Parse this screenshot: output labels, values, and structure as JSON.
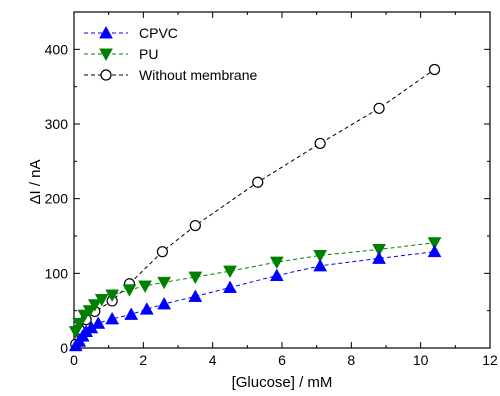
{
  "chart_data": {
    "type": "scatter",
    "xlabel": "[Glucose] / mM",
    "ylabel": "ΔI / nA",
    "xlim": [
      0,
      12
    ],
    "ylim": [
      0,
      450
    ],
    "xticks": [
      0,
      2,
      4,
      6,
      8,
      10,
      12
    ],
    "yticks": [
      0,
      100,
      200,
      300,
      400
    ],
    "grid": false,
    "legend_position": "top-left",
    "series": [
      {
        "name": "CPVC",
        "color": "#0000ff",
        "marker": "triangle-up",
        "line": "dashed",
        "x": [
          0.05,
          0.15,
          0.25,
          0.35,
          0.5,
          0.7,
          1.1,
          1.65,
          2.1,
          2.6,
          3.5,
          4.5,
          5.85,
          7.1,
          8.8,
          10.4
        ],
        "y": [
          3,
          9,
          16,
          22,
          27,
          33,
          39,
          45,
          52,
          59,
          69,
          81,
          97,
          110,
          120,
          129
        ]
      },
      {
        "name": "PU",
        "color": "#008000",
        "marker": "triangle-down",
        "line": "dashed",
        "x": [
          0.05,
          0.15,
          0.3,
          0.45,
          0.6,
          0.8,
          1.1,
          1.6,
          2.05,
          2.6,
          3.5,
          4.5,
          5.85,
          7.1,
          8.8,
          10.4
        ],
        "y": [
          22,
          33,
          44,
          50,
          58,
          65,
          71,
          78,
          83,
          88,
          95,
          103,
          115,
          124,
          132,
          141
        ]
      },
      {
        "name": "Without membrane",
        "color": "#000000",
        "marker": "circle-open",
        "line": "dashed",
        "x": [
          0.05,
          0.15,
          0.35,
          0.6,
          1.1,
          1.6,
          2.55,
          3.5,
          5.3,
          7.1,
          8.8,
          10.4
        ],
        "y": [
          5,
          25,
          38,
          49,
          63,
          86,
          129,
          164,
          222,
          274,
          321,
          373
        ]
      }
    ]
  }
}
